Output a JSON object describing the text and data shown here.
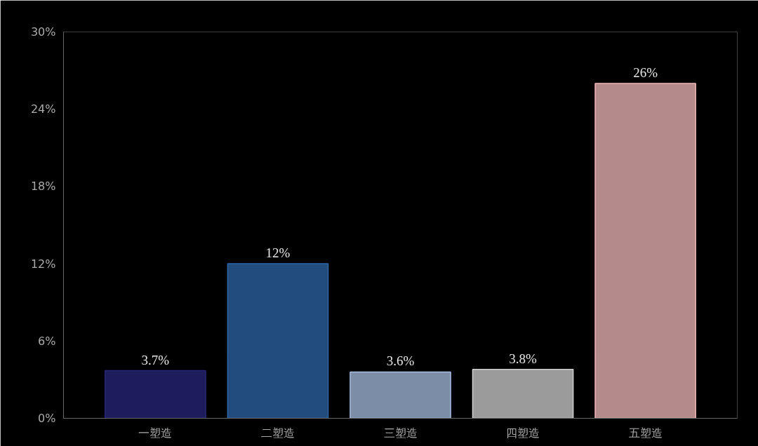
{
  "chart_data": {
    "type": "bar",
    "categories": [
      "一塑造",
      "二塑造",
      "三塑造",
      "四塑造",
      "五塑造"
    ],
    "values": [
      3.7,
      12,
      3.6,
      3.8,
      26
    ],
    "value_labels": [
      "3.7%",
      "12%",
      "3.6%",
      "3.8%",
      "26%"
    ],
    "colors": [
      "#27277a",
      "#2d66a6",
      "#a6bce0",
      "#cfcfcf",
      "#f2b8b8"
    ],
    "ylim": [
      0,
      30
    ],
    "yticks": [
      {
        "value": 0,
        "label": "0%"
      },
      {
        "value": 6,
        "label": "6%"
      },
      {
        "value": 12,
        "label": "12%"
      },
      {
        "value": 18,
        "label": "18%"
      },
      {
        "value": 24,
        "label": "24%"
      },
      {
        "value": 30,
        "label": "30%"
      }
    ],
    "grid": false
  }
}
